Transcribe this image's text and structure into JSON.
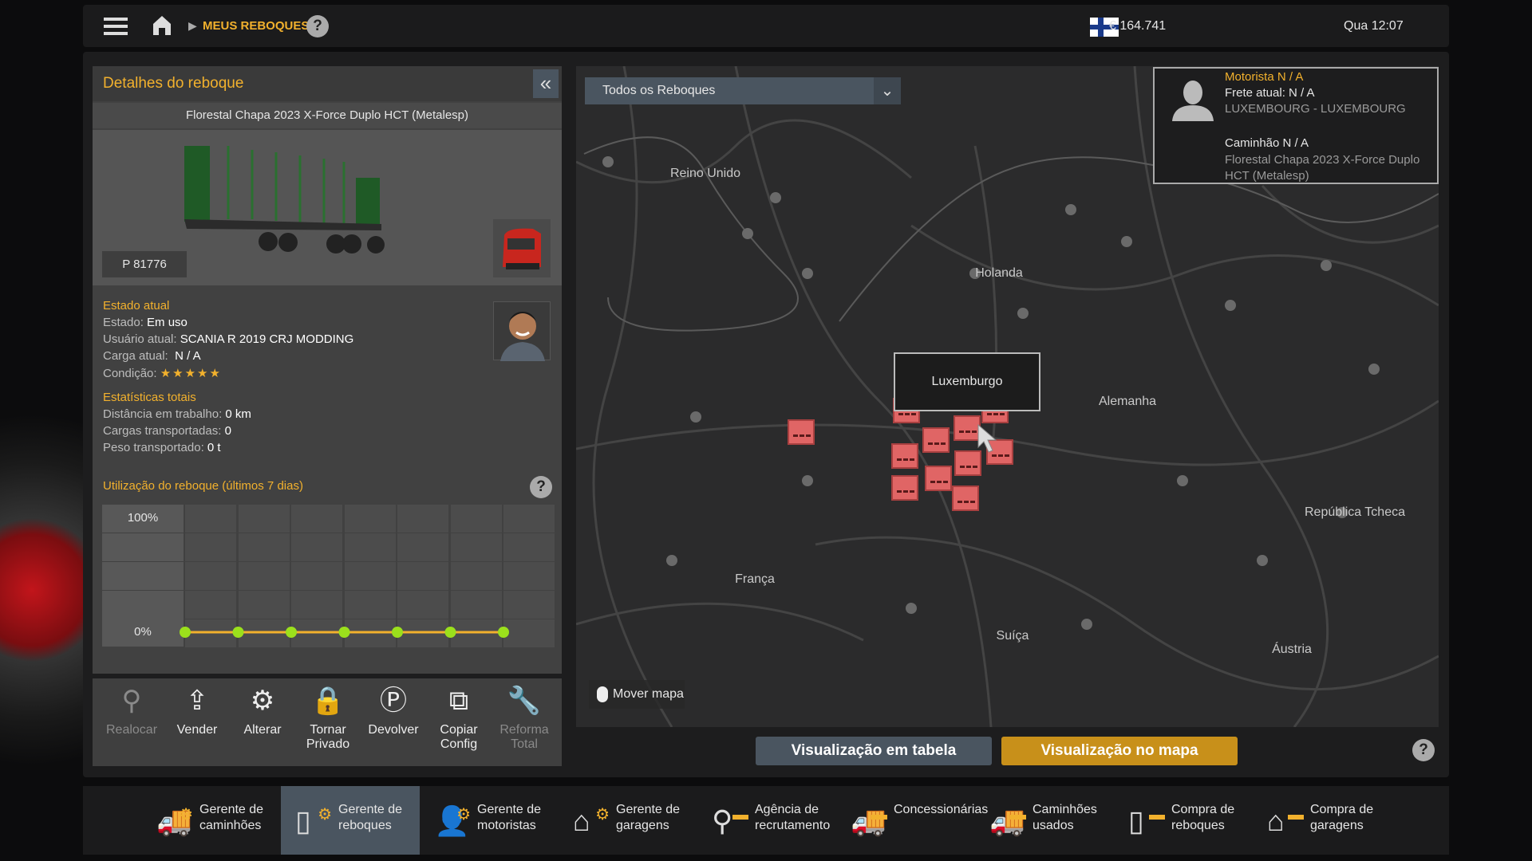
{
  "topbar": {
    "breadcrumb": "MEUS REBOQUES",
    "help": "?",
    "money": "€ 164.741",
    "clock": "Qua 12:07"
  },
  "details": {
    "title": "Detalhes do reboque",
    "collapse": "«",
    "trailer_name": "Florestal Chapa 2023 X-Force Duplo HCT (Metalesp)",
    "plate": "P 81776",
    "state_title": "Estado atual",
    "state": {
      "label": "Estado:",
      "value": "Em uso"
    },
    "user": {
      "label": "Usuário atual:",
      "value": "SCANIA R 2019 CRJ MODDING"
    },
    "cargo": {
      "label": "Carga atual:",
      "value": "N / A"
    },
    "condition": {
      "label": "Condição:",
      "stars": 5,
      "max": 5,
      "glyphs": "★★★★★"
    },
    "stats_title": "Estatísticas totais",
    "distance": {
      "label": "Distância em trabalho:",
      "value": "0 km"
    },
    "loads": {
      "label": "Cargas transportadas:",
      "value": "0"
    },
    "weight": {
      "label": "Peso transportado:",
      "value": "0 t"
    },
    "usage_title": "Utilização do reboque (últimos 7 dias)",
    "usage_help": "?",
    "usage_max": "100%",
    "usage_min": "0%",
    "usage_values_percent": [
      0,
      0,
      0,
      0,
      0,
      0,
      0
    ],
    "colors": {
      "accent": "#f2b12d",
      "point": "#9be01c"
    }
  },
  "actions": [
    {
      "label": "Realocar",
      "icon": "relocate-pin-icon",
      "glyph": "⚲",
      "enabled": false
    },
    {
      "label": "Vender",
      "icon": "sell-hand-icon",
      "glyph": "⇪",
      "enabled": true
    },
    {
      "label": "Alterar",
      "icon": "change-gear-icon",
      "glyph": "⚙",
      "enabled": true
    },
    {
      "label": "Tornar Privado",
      "icon": "lock-icon",
      "glyph": "🔒",
      "enabled": true
    },
    {
      "label": "Devolver",
      "icon": "return-trailer-icon",
      "glyph": "Ⓟ",
      "enabled": true
    },
    {
      "label": "Copiar Config",
      "icon": "copy-config-icon",
      "glyph": "⧉",
      "enabled": true
    },
    {
      "label": "Reforma Total",
      "icon": "repair-wrench-icon",
      "glyph": "🔧",
      "enabled": false
    }
  ],
  "map": {
    "filter": "Todos os Reboques",
    "info": {
      "driver": "Motorista N / A",
      "cargo": "Frete atual: N / A",
      "route": "LUXEMBOURG - LUXEMBOURG",
      "truck": "Caminhão N / A",
      "truck_detail": "Florestal Chapa 2023 X-Force Duplo HCT (Metalesp)"
    },
    "countries": [
      "Reino Unido",
      "Holanda",
      "Alemanha",
      "França",
      "Suíça",
      "Áustria",
      "República Tcheca"
    ],
    "tooltip": "Luxemburgo",
    "move_map": "Mover mapa"
  },
  "view_tabs": {
    "table": "Visualização em tabela",
    "map": "Visualização no mapa",
    "active": "map",
    "help": "?"
  },
  "nav": [
    {
      "label": "Gerente de caminhões",
      "icon": "truck-manager-icon"
    },
    {
      "label": "Gerente de reboques",
      "icon": "trailer-manager-icon",
      "active": true
    },
    {
      "label": "Gerente de motoristas",
      "icon": "driver-manager-icon"
    },
    {
      "label": "Gerente de garagens",
      "icon": "garage-manager-icon"
    },
    {
      "label": "Agência de recrutamento",
      "icon": "recruitment-icon"
    },
    {
      "label": "Concessionárias",
      "icon": "dealer-icon"
    },
    {
      "label": "Caminhões usados",
      "icon": "used-trucks-icon"
    },
    {
      "label": "Compra de reboques",
      "icon": "buy-trailer-icon"
    },
    {
      "label": "Compra de garagens",
      "icon": "buy-garage-icon"
    }
  ]
}
